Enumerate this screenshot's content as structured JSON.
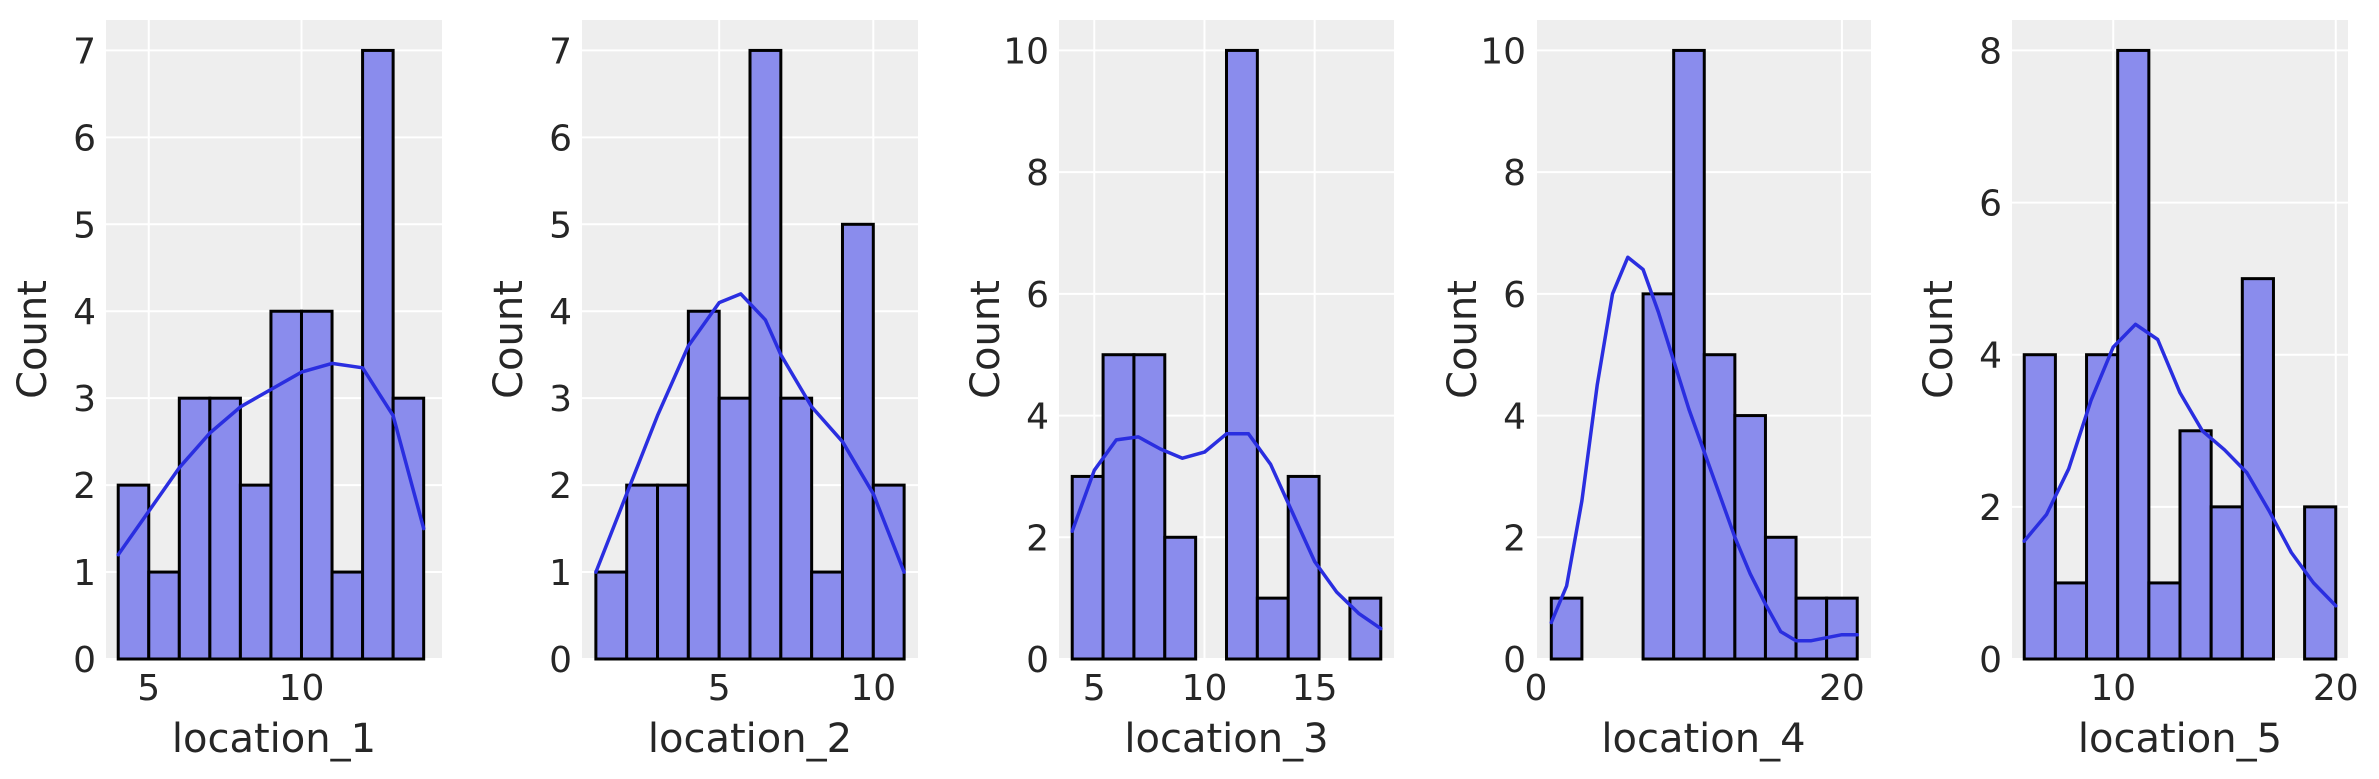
{
  "chart_data": [
    {
      "type": "bar",
      "title": "",
      "xlabel": "location_1",
      "ylabel": "Count",
      "xlim": [
        3.6,
        14.6
      ],
      "ylim": [
        0,
        7.35
      ],
      "xticks": [
        5,
        10
      ],
      "yticks": [
        0,
        1,
        2,
        3,
        4,
        5,
        6,
        7
      ],
      "bin_edges": [
        4,
        5,
        6,
        7,
        8,
        9,
        10,
        11,
        12,
        13,
        14
      ],
      "values": [
        2,
        1,
        3,
        3,
        2,
        4,
        4,
        1,
        7,
        3
      ],
      "kde": [
        [
          4,
          1.2
        ],
        [
          5,
          1.7
        ],
        [
          6,
          2.2
        ],
        [
          7,
          2.6
        ],
        [
          8,
          2.9
        ],
        [
          9,
          3.1
        ],
        [
          10,
          3.3
        ],
        [
          11,
          3.4
        ],
        [
          12,
          3.35
        ],
        [
          13,
          2.8
        ],
        [
          14,
          1.5
        ]
      ],
      "grid": true,
      "colors": {
        "bar_fill": "#8a8ced",
        "bar_edge": "#000000",
        "kde": "#2a2ee0",
        "background": "#eeeeee",
        "grid": "#ffffff"
      }
    },
    {
      "type": "bar",
      "title": "",
      "xlabel": "location_2",
      "ylabel": "Count",
      "xlim": [
        0.55,
        11.45
      ],
      "ylim": [
        0,
        7.35
      ],
      "xticks": [
        5,
        10
      ],
      "yticks": [
        0,
        1,
        2,
        3,
        4,
        5,
        6,
        7
      ],
      "bin_edges": [
        1,
        2,
        3,
        4,
        5,
        6,
        7,
        8,
        9,
        10,
        11
      ],
      "values": [
        1,
        2,
        2,
        4,
        3,
        7,
        3,
        1,
        5,
        2
      ],
      "kde": [
        [
          1,
          1.0
        ],
        [
          2,
          1.9
        ],
        [
          3,
          2.8
        ],
        [
          4,
          3.6
        ],
        [
          5,
          4.1
        ],
        [
          5.7,
          4.2
        ],
        [
          6.5,
          3.9
        ],
        [
          7,
          3.5
        ],
        [
          8,
          2.9
        ],
        [
          9,
          2.5
        ],
        [
          10,
          1.9
        ],
        [
          11,
          1.0
        ]
      ],
      "grid": true,
      "colors": {
        "bar_fill": "#8a8ced",
        "bar_edge": "#000000",
        "kde": "#2a2ee0",
        "background": "#eeeeee",
        "grid": "#ffffff"
      }
    },
    {
      "type": "bar",
      "title": "",
      "xlabel": "location_3",
      "ylabel": "Count",
      "xlim": [
        3.4,
        18.6
      ],
      "ylim": [
        0,
        10.5
      ],
      "xticks": [
        5,
        10,
        15
      ],
      "yticks": [
        0,
        2,
        4,
        6,
        8,
        10
      ],
      "bin_edges": [
        4,
        5.4,
        6.8,
        8.2,
        9.6,
        11,
        12.4,
        13.8,
        15.2,
        16.6,
        18
      ],
      "values": [
        3,
        5,
        5,
        2,
        0,
        10,
        1,
        3,
        0,
        1
      ],
      "kde": [
        [
          4,
          2.1
        ],
        [
          5,
          3.1
        ],
        [
          6,
          3.6
        ],
        [
          7,
          3.65
        ],
        [
          8,
          3.45
        ],
        [
          9,
          3.3
        ],
        [
          10,
          3.4
        ],
        [
          11,
          3.7
        ],
        [
          12,
          3.7
        ],
        [
          13,
          3.2
        ],
        [
          14,
          2.4
        ],
        [
          15,
          1.6
        ],
        [
          16,
          1.1
        ],
        [
          17,
          0.75
        ],
        [
          18,
          0.5
        ]
      ],
      "grid": true,
      "colors": {
        "bar_fill": "#8a8ced",
        "bar_edge": "#000000",
        "kde": "#2a2ee0",
        "background": "#eeeeee",
        "grid": "#ffffff"
      }
    },
    {
      "type": "bar",
      "title": "",
      "xlabel": "location_4",
      "ylabel": "Count",
      "xlim": [
        0,
        21.9
      ],
      "ylim": [
        0,
        10.5
      ],
      "xticks": [
        0,
        20
      ],
      "yticks": [
        0,
        2,
        4,
        6,
        8,
        10
      ],
      "bin_edges": [
        1,
        3,
        5,
        7,
        9,
        11,
        13,
        15,
        17,
        19,
        21
      ],
      "values": [
        1,
        0,
        0,
        6,
        10,
        5,
        4,
        2,
        1,
        1
      ],
      "kde": [
        [
          1,
          0.6
        ],
        [
          2,
          1.2
        ],
        [
          3,
          2.6
        ],
        [
          4,
          4.5
        ],
        [
          5,
          6.0
        ],
        [
          6,
          6.6
        ],
        [
          7,
          6.4
        ],
        [
          8,
          5.7
        ],
        [
          9,
          4.9
        ],
        [
          10,
          4.1
        ],
        [
          11,
          3.4
        ],
        [
          12,
          2.7
        ],
        [
          13,
          2.0
        ],
        [
          14,
          1.4
        ],
        [
          15,
          0.9
        ],
        [
          16,
          0.45
        ],
        [
          17,
          0.3
        ],
        [
          18,
          0.3
        ],
        [
          19,
          0.35
        ],
        [
          20,
          0.4
        ],
        [
          21,
          0.4
        ]
      ],
      "grid": true,
      "colors": {
        "bar_fill": "#8a8ced",
        "bar_edge": "#000000",
        "kde": "#2a2ee0",
        "background": "#eeeeee",
        "grid": "#ffffff"
      }
    },
    {
      "type": "bar",
      "title": "",
      "xlabel": "location_5",
      "ylabel": "Count",
      "xlim": [
        5.45,
        20.55
      ],
      "ylim": [
        0,
        8.4
      ],
      "xticks": [
        10,
        20
      ],
      "yticks": [
        0,
        2,
        4,
        6,
        8
      ],
      "bin_edges": [
        6,
        7.4,
        8.8,
        10.2,
        11.6,
        13,
        14.4,
        15.8,
        17.2,
        18.6,
        20
      ],
      "values": [
        4,
        1,
        4,
        8,
        1,
        3,
        2,
        5,
        0,
        2
      ],
      "kde": [
        [
          6,
          1.55
        ],
        [
          7,
          1.9
        ],
        [
          8,
          2.5
        ],
        [
          9,
          3.4
        ],
        [
          10,
          4.1
        ],
        [
          11,
          4.4
        ],
        [
          12,
          4.2
        ],
        [
          13,
          3.5
        ],
        [
          14,
          3.0
        ],
        [
          15,
          2.75
        ],
        [
          16,
          2.45
        ],
        [
          17,
          1.95
        ],
        [
          18,
          1.4
        ],
        [
          19,
          1.0
        ],
        [
          20,
          0.7
        ]
      ],
      "grid": true,
      "colors": {
        "bar_fill": "#8a8ced",
        "bar_edge": "#000000",
        "kde": "#2a2ee0",
        "background": "#eeeeee",
        "grid": "#ffffff"
      }
    }
  ]
}
